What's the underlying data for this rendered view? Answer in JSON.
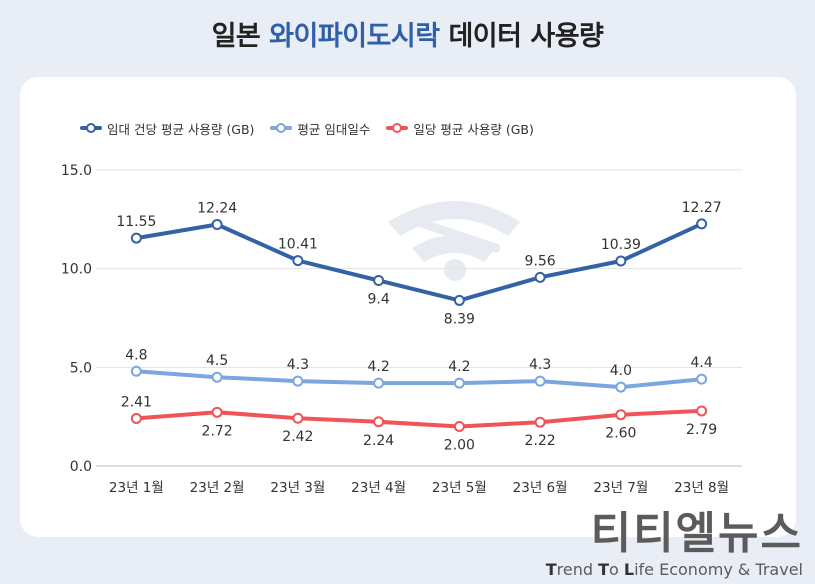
{
  "title": {
    "pre": "일본 ",
    "highlight": "와이파이도시락",
    "post": " 데이터 사용량"
  },
  "colors": {
    "series1": "#3462a7",
    "series2": "#7ba6df",
    "series3": "#ef5459",
    "highlight": "#2f5fa8"
  },
  "chart_data": {
    "type": "line",
    "categories": [
      "23년 1월",
      "23년 2월",
      "23년 3월",
      "23년 4월",
      "23년 5월",
      "23년 6월",
      "23년 7월",
      "23년 8월"
    ],
    "ylim": [
      0,
      15
    ],
    "yticks": [
      "0.0",
      "5.0",
      "10.0",
      "15.0"
    ],
    "grid": true,
    "legend_position": "top-left",
    "series": [
      {
        "name": "임대 건당 평균 사용량 (GB)",
        "values": [
          11.55,
          12.24,
          10.41,
          9.4,
          8.39,
          9.56,
          10.39,
          12.27
        ],
        "labels": [
          "11.55",
          "12.24",
          "10.41",
          "9.4",
          "8.39",
          "9.56",
          "10.39",
          "12.27"
        ],
        "label_pos": [
          "above",
          "above",
          "above",
          "below",
          "below",
          "above",
          "above",
          "above"
        ]
      },
      {
        "name": "평균 임대일수",
        "values": [
          4.8,
          4.5,
          4.3,
          4.2,
          4.2,
          4.3,
          4.0,
          4.4
        ],
        "labels": [
          "4.8",
          "4.5",
          "4.3",
          "4.2",
          "4.2",
          "4.3",
          "4.0",
          "4.4"
        ],
        "label_pos": [
          "above",
          "above",
          "above",
          "above",
          "above",
          "above",
          "above",
          "above"
        ]
      },
      {
        "name": "일당 평균 사용량 (GB)",
        "values": [
          2.41,
          2.72,
          2.42,
          2.24,
          2.0,
          2.22,
          2.6,
          2.79
        ],
        "labels": [
          "2.41",
          "2.72",
          "2.42",
          "2.24",
          "2.00",
          "2.22",
          "2.60",
          "2.79"
        ],
        "label_pos": [
          "above",
          "below",
          "below",
          "below",
          "below",
          "below",
          "below",
          "below"
        ]
      }
    ]
  },
  "watermark": {
    "icon": "wifi-icon"
  },
  "brand": {
    "name": "티티엘뉴스",
    "slogan_parts": [
      "T",
      "rend ",
      "T",
      "o ",
      "L",
      "ife Economy & Travel"
    ]
  }
}
